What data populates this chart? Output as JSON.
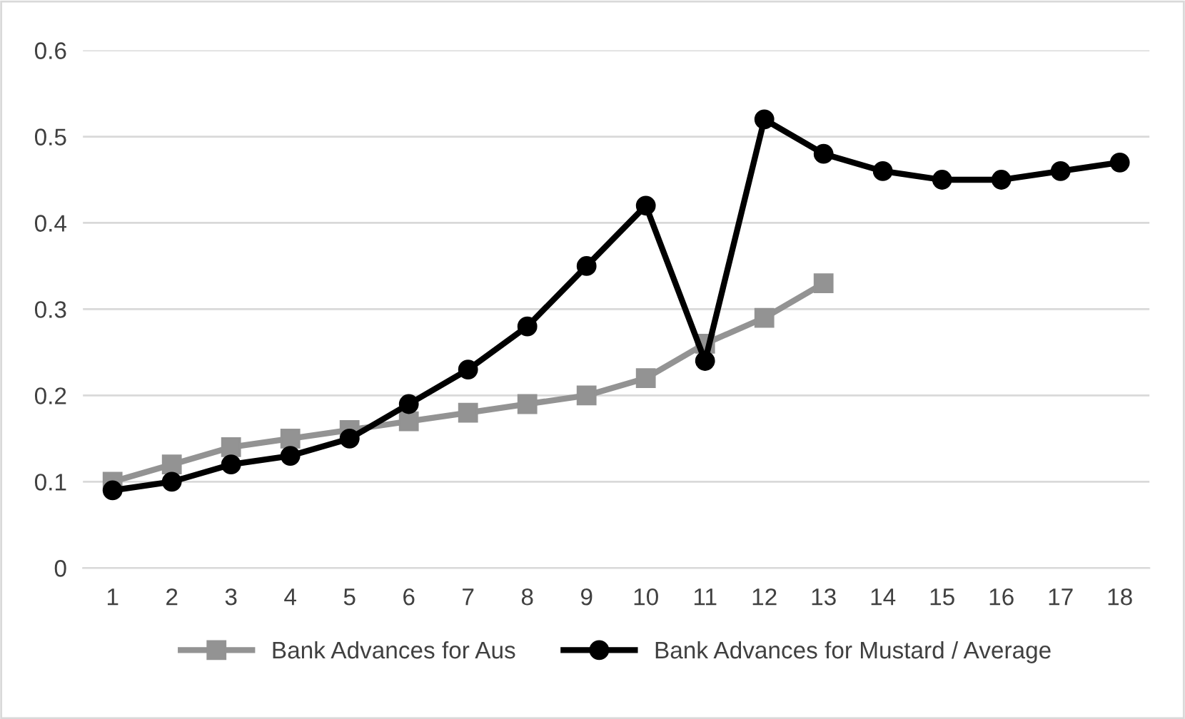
{
  "chart_data": {
    "type": "line",
    "categories": [
      "1",
      "2",
      "3",
      "4",
      "5",
      "6",
      "7",
      "8",
      "9",
      "10",
      "11",
      "12",
      "13",
      "14",
      "15",
      "16",
      "17",
      "18"
    ],
    "series": [
      {
        "name": "Bank Advances for Aus",
        "color": "#939393",
        "marker": "square",
        "values": [
          0.1,
          0.12,
          0.14,
          0.15,
          0.16,
          0.17,
          0.18,
          0.19,
          0.2,
          0.22,
          0.26,
          0.29,
          0.33,
          null,
          null,
          null,
          null,
          null
        ]
      },
      {
        "name": "Bank Advances for Mustard / Average",
        "color": "#000000",
        "marker": "circle",
        "values": [
          0.09,
          0.1,
          0.12,
          0.13,
          0.15,
          0.19,
          0.23,
          0.28,
          0.35,
          0.42,
          0.24,
          0.52,
          0.48,
          0.46,
          0.45,
          0.45,
          0.46,
          0.47
        ]
      }
    ],
    "ylim": [
      0,
      0.6
    ],
    "yticks": [
      0,
      0.1,
      0.2,
      0.3,
      0.4,
      0.5,
      0.6
    ],
    "grid": "y",
    "legend": "bottom",
    "line_style": "solid"
  }
}
